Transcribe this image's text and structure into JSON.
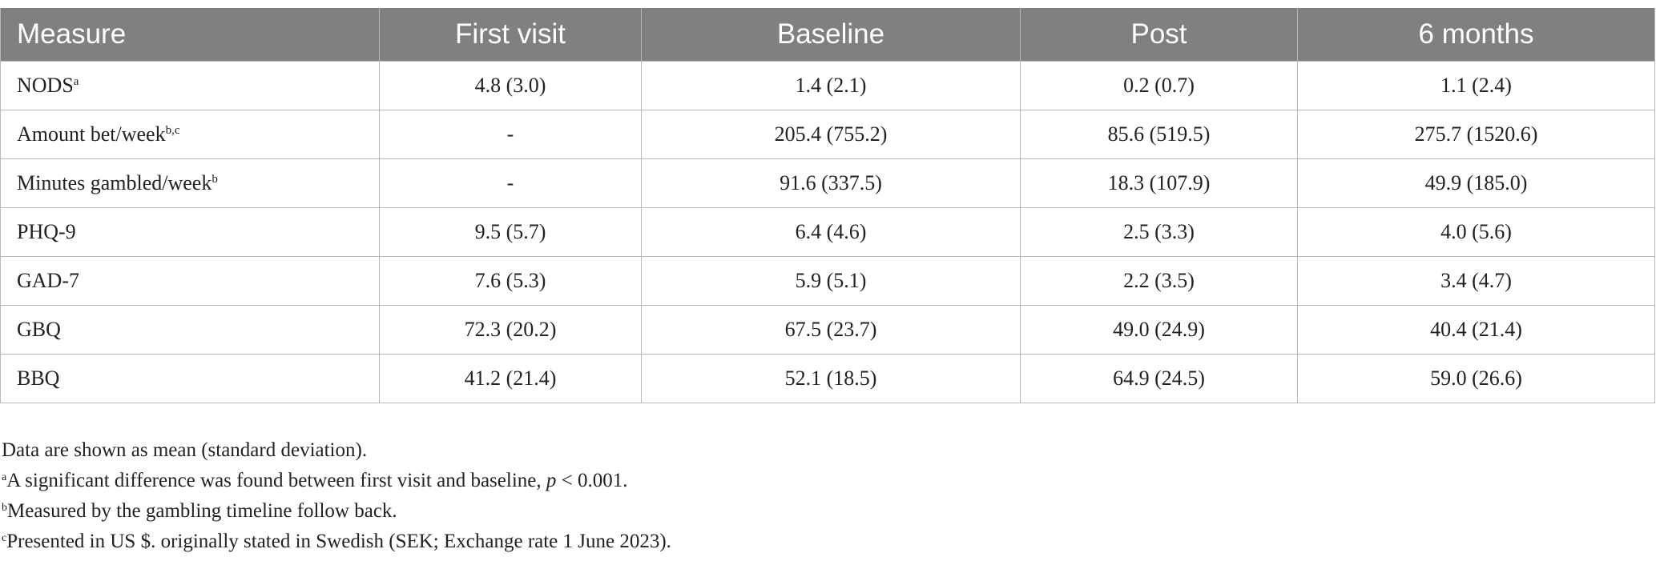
{
  "table": {
    "header": [
      "Measure",
      "First visit",
      "Baseline",
      "Post",
      "6 months"
    ],
    "rows": [
      {
        "label": "NODS",
        "note": "a",
        "values": [
          "4.8 (3.0)",
          "1.4 (2.1)",
          "0.2 (0.7)",
          "1.1 (2.4)"
        ]
      },
      {
        "label": "Amount bet/week",
        "note": "b,c",
        "values": [
          "-",
          "205.4 (755.2)",
          "85.6 (519.5)",
          "275.7 (1520.6)"
        ]
      },
      {
        "label": "Minutes gambled/week",
        "note": "b",
        "values": [
          "-",
          "91.6 (337.5)",
          "18.3 (107.9)",
          "49.9 (185.0)"
        ]
      },
      {
        "label": "PHQ-9",
        "values": [
          "9.5 (5.7)",
          "6.4 (4.6)",
          "2.5 (3.3)",
          "4.0 (5.6)"
        ]
      },
      {
        "label": "GAD-7",
        "values": [
          "7.6 (5.3)",
          "5.9 (5.1)",
          "2.2 (3.5)",
          "3.4 (4.7)"
        ]
      },
      {
        "label": "GBQ",
        "values": [
          "72.3 (20.2)",
          "67.5 (23.7)",
          "49.0 (24.9)",
          "40.4 (21.4)"
        ]
      },
      {
        "label": "BBQ",
        "values": [
          "41.2 (21.4)",
          "52.1 (18.5)",
          "64.9 (24.5)",
          "59.0 (26.6)"
        ]
      }
    ]
  },
  "footnotes": {
    "general": "Data are shown as mean (standard deviation).",
    "notes": [
      {
        "marker": "a",
        "parts": [
          "A significant difference was found between first visit and baseline, ",
          "p",
          " < 0.001."
        ]
      },
      {
        "marker": "b",
        "parts": [
          "Measured by the gambling timeline follow back."
        ]
      },
      {
        "marker": "c",
        "parts": [
          "Presented in US $. originally stated in Swedish (SEK; Exchange rate 1 June 2023)."
        ]
      }
    ]
  }
}
